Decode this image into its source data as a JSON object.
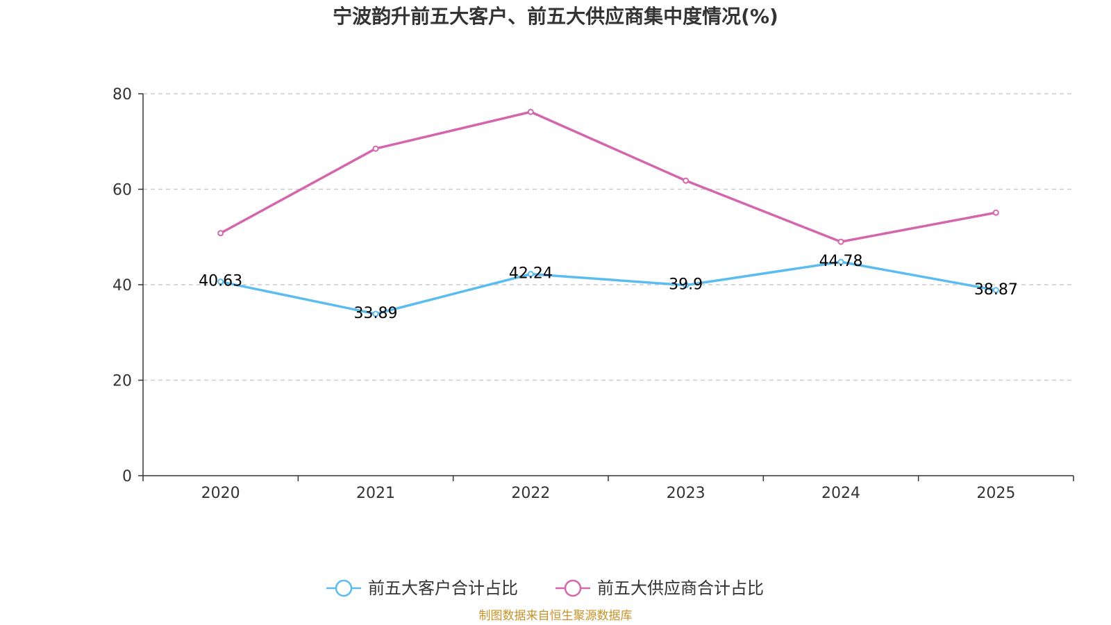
{
  "chart_data": {
    "type": "line",
    "title": "宁波韵升前五大客户、前五大供应商集中度情况(%)",
    "categories": [
      "2020",
      "2021",
      "2022",
      "2023",
      "2024",
      "2025"
    ],
    "ylim": [
      0,
      80
    ],
    "yticks": [
      0,
      20,
      40,
      60,
      80
    ],
    "grid": true,
    "legend_position": "bottom-center",
    "series": [
      {
        "name": "前五大客户合计占比",
        "color": "#5bbcf0",
        "values": [
          40.63,
          33.89,
          42.24,
          39.9,
          44.78,
          38.87
        ],
        "labels": [
          "40.63",
          "33.89",
          "42.24",
          "39.9",
          "44.78",
          "38.87"
        ],
        "show_labels": true
      },
      {
        "name": "前五大供应商合计占比",
        "color": "#d466ad",
        "values": [
          50.8,
          68.5,
          76.2,
          61.8,
          49.0,
          55.1
        ],
        "show_labels": false
      }
    ],
    "source": "制图数据来自恒生聚源数据库"
  }
}
